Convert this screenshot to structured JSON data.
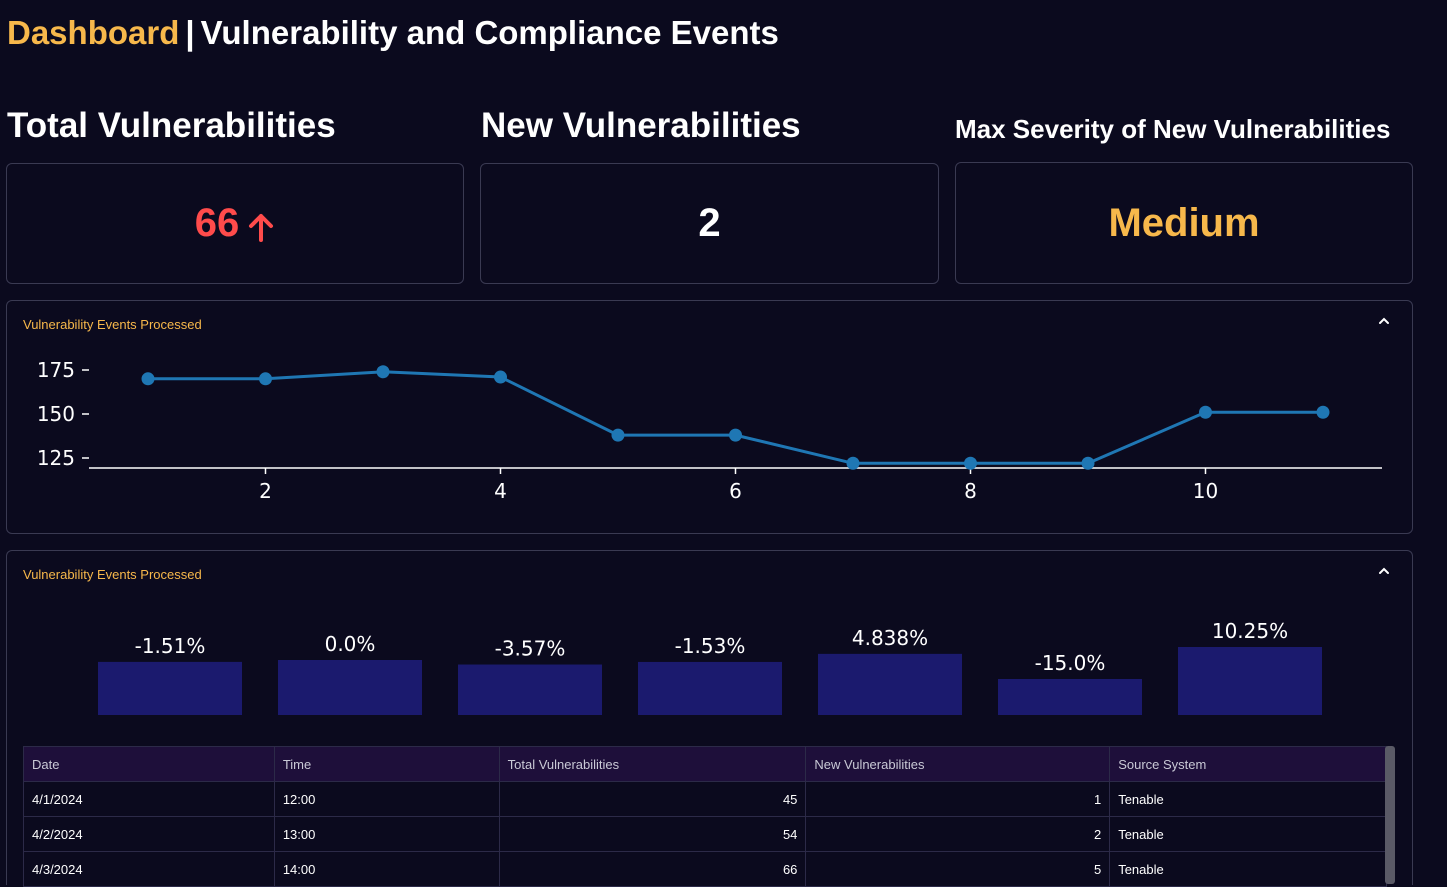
{
  "header": {
    "dashboard": "Dashboard",
    "separator": "|",
    "title": "Vulnerability and Compliance Events"
  },
  "kpis": [
    {
      "label": "Total Vulnerabilities",
      "value": "66",
      "color": "#ff4b4b",
      "trend_icon": "arrow-up-icon"
    },
    {
      "label": "New Vulnerabilities",
      "value": "2",
      "color": "#ffffff"
    },
    {
      "label": "Max Severity of New Vulnerabilities",
      "value": "Medium",
      "color": "#f7b84b"
    }
  ],
  "line_panel": {
    "label": "Vulnerability Events Processed"
  },
  "bar_panel": {
    "label": "Vulnerability Events Processed"
  },
  "colors": {
    "accent": "#f7b84b",
    "line": "#1f77b4",
    "bar": "#1b1a6e",
    "alert": "#ff4b4b"
  },
  "chart_data": [
    {
      "type": "line",
      "x": [
        1,
        2,
        3,
        4,
        5,
        6,
        7,
        8,
        9,
        10,
        11
      ],
      "y": [
        170,
        170,
        174,
        171,
        138,
        138,
        122,
        122,
        122,
        151,
        151
      ],
      "xticks": [
        2,
        4,
        6,
        8,
        10
      ],
      "yticks": [
        125,
        150,
        175
      ],
      "xlim": [
        0.25,
        11.5
      ],
      "ylim": [
        120,
        178
      ]
    },
    {
      "type": "bar",
      "categories": [
        "",
        "",
        "",
        "",
        "",
        "",
        ""
      ],
      "values": [
        -1.51,
        0.0,
        -3.57,
        -1.53,
        4.838,
        -15.0,
        10.25
      ],
      "labels": [
        "-1.51%",
        "0.0%",
        "-3.57%",
        "-1.53%",
        "4.838%",
        "-15.0%",
        "10.25%"
      ]
    }
  ],
  "table": {
    "columns": [
      "Date",
      "Time",
      "Total Vulnerabilities",
      "New Vulnerabilities",
      "Source System"
    ],
    "rows": [
      [
        "4/1/2024",
        "12:00",
        "45",
        "1",
        "Tenable"
      ],
      [
        "4/2/2024",
        "13:00",
        "54",
        "2",
        "Tenable"
      ],
      [
        "4/3/2024",
        "14:00",
        "66",
        "5",
        "Tenable"
      ]
    ]
  }
}
